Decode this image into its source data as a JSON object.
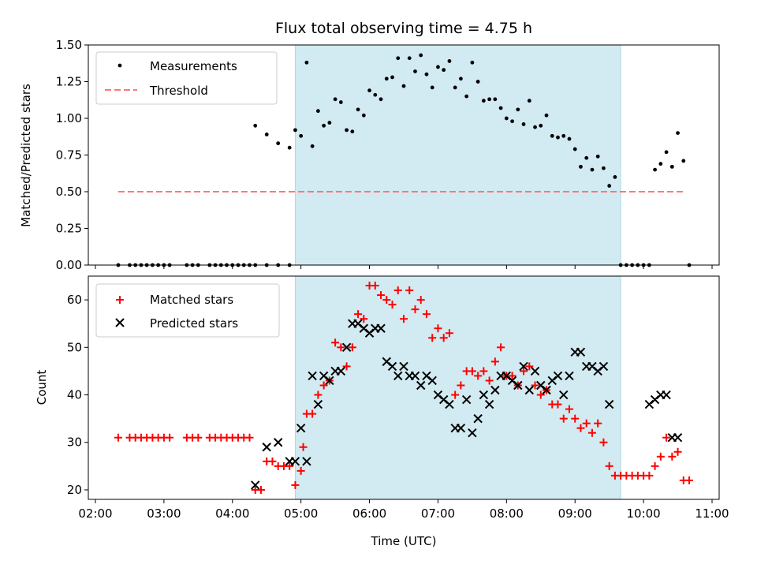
{
  "title": "Flux total observing time = 4.75 h",
  "xlabel": "Time (UTC)",
  "colors": {
    "shade": "#add8e6",
    "measurement": "#000000",
    "threshold": "#ff7777",
    "matched": "#ff0000",
    "predicted": "#000000"
  },
  "chart_data": [
    {
      "type": "scatter",
      "ylabel": "Matched/Predicted stars",
      "ylim": [
        0,
        1.5
      ],
      "yticks": [
        "0.00",
        "0.25",
        "0.50",
        "0.75",
        "1.00",
        "1.25",
        "1.50"
      ],
      "xlim": [
        "02:00",
        "11:00"
      ],
      "observing_window": [
        "04:55",
        "09:40"
      ],
      "legend_position": "top-left",
      "threshold": {
        "name": "Threshold",
        "value": 0.5,
        "x_range": [
          "02:20",
          "10:35"
        ]
      },
      "series": [
        {
          "name": "Measurements",
          "points": [
            [
              "02:20",
              0
            ],
            [
              "02:30",
              0
            ],
            [
              "02:35",
              0
            ],
            [
              "02:40",
              0
            ],
            [
              "02:45",
              0
            ],
            [
              "02:50",
              0
            ],
            [
              "02:55",
              0
            ],
            [
              "03:00",
              0
            ],
            [
              "03:05",
              0
            ],
            [
              "03:20",
              0
            ],
            [
              "03:25",
              0
            ],
            [
              "03:30",
              0
            ],
            [
              "03:40",
              0
            ],
            [
              "03:45",
              0
            ],
            [
              "03:50",
              0
            ],
            [
              "03:55",
              0
            ],
            [
              "04:00",
              0
            ],
            [
              "04:05",
              0
            ],
            [
              "04:10",
              0
            ],
            [
              "04:15",
              0
            ],
            [
              "04:20",
              0
            ],
            [
              "04:30",
              0
            ],
            [
              "04:40",
              0
            ],
            [
              "04:50",
              0
            ],
            [
              "04:20",
              0.95
            ],
            [
              "04:30",
              0.89
            ],
            [
              "04:40",
              0.83
            ],
            [
              "04:50",
              0.8
            ],
            [
              "04:55",
              0.92
            ],
            [
              "05:00",
              0.88
            ],
            [
              "05:05",
              1.38
            ],
            [
              "05:10",
              0.81
            ],
            [
              "05:15",
              1.05
            ],
            [
              "05:20",
              0.95
            ],
            [
              "05:25",
              0.97
            ],
            [
              "05:30",
              1.13
            ],
            [
              "05:35",
              1.11
            ],
            [
              "05:40",
              0.92
            ],
            [
              "05:45",
              0.91
            ],
            [
              "05:50",
              1.06
            ],
            [
              "05:55",
              1.02
            ],
            [
              "06:00",
              1.19
            ],
            [
              "06:05",
              1.16
            ],
            [
              "06:10",
              1.13
            ],
            [
              "06:15",
              1.27
            ],
            [
              "06:20",
              1.28
            ],
            [
              "06:25",
              1.41
            ],
            [
              "06:30",
              1.22
            ],
            [
              "06:35",
              1.41
            ],
            [
              "06:40",
              1.32
            ],
            [
              "06:45",
              1.43
            ],
            [
              "06:50",
              1.3
            ],
            [
              "06:55",
              1.21
            ],
            [
              "07:00",
              1.35
            ],
            [
              "07:05",
              1.33
            ],
            [
              "07:10",
              1.39
            ],
            [
              "07:15",
              1.21
            ],
            [
              "07:20",
              1.27
            ],
            [
              "07:25",
              1.15
            ],
            [
              "07:30",
              1.38
            ],
            [
              "07:35",
              1.25
            ],
            [
              "07:40",
              1.12
            ],
            [
              "07:45",
              1.13
            ],
            [
              "07:50",
              1.13
            ],
            [
              "07:55",
              1.07
            ],
            [
              "08:00",
              1.0
            ],
            [
              "08:05",
              0.98
            ],
            [
              "08:10",
              1.06
            ],
            [
              "08:15",
              0.96
            ],
            [
              "08:20",
              1.12
            ],
            [
              "08:25",
              0.94
            ],
            [
              "08:30",
              0.95
            ],
            [
              "08:35",
              1.02
            ],
            [
              "08:40",
              0.88
            ],
            [
              "08:45",
              0.87
            ],
            [
              "08:50",
              0.88
            ],
            [
              "08:55",
              0.86
            ],
            [
              "09:00",
              0.79
            ],
            [
              "09:05",
              0.67
            ],
            [
              "09:10",
              0.73
            ],
            [
              "09:15",
              0.65
            ],
            [
              "09:20",
              0.74
            ],
            [
              "09:25",
              0.66
            ],
            [
              "09:30",
              0.54
            ],
            [
              "09:35",
              0.6
            ],
            [
              "09:40",
              0
            ],
            [
              "09:45",
              0
            ],
            [
              "09:50",
              0
            ],
            [
              "09:55",
              0
            ],
            [
              "10:00",
              0
            ],
            [
              "10:05",
              0
            ],
            [
              "10:10",
              0.65
            ],
            [
              "10:15",
              0.69
            ],
            [
              "10:20",
              0.77
            ],
            [
              "10:25",
              0.67
            ],
            [
              "10:30",
              0.9
            ],
            [
              "10:35",
              0.71
            ],
            [
              "10:40",
              0
            ]
          ]
        }
      ]
    },
    {
      "type": "scatter",
      "ylabel": "Count",
      "ylim": [
        18,
        65
      ],
      "yticks": [
        "20",
        "30",
        "40",
        "50",
        "60"
      ],
      "xlim": [
        "02:00",
        "11:00"
      ],
      "xticks": [
        "02:00",
        "03:00",
        "04:00",
        "05:00",
        "06:00",
        "07:00",
        "08:00",
        "09:00",
        "10:00",
        "11:00"
      ],
      "observing_window": [
        "04:55",
        "09:40"
      ],
      "legend_position": "top-left",
      "series": [
        {
          "name": "Matched stars",
          "marker": "plus",
          "points": [
            [
              "02:20",
              31
            ],
            [
              "02:30",
              31
            ],
            [
              "02:35",
              31
            ],
            [
              "02:40",
              31
            ],
            [
              "02:45",
              31
            ],
            [
              "02:50",
              31
            ],
            [
              "02:55",
              31
            ],
            [
              "03:00",
              31
            ],
            [
              "03:05",
              31
            ],
            [
              "03:20",
              31
            ],
            [
              "03:25",
              31
            ],
            [
              "03:30",
              31
            ],
            [
              "03:40",
              31
            ],
            [
              "03:45",
              31
            ],
            [
              "03:50",
              31
            ],
            [
              "03:55",
              31
            ],
            [
              "04:00",
              31
            ],
            [
              "04:05",
              31
            ],
            [
              "04:10",
              31
            ],
            [
              "04:15",
              31
            ],
            [
              "04:20",
              20
            ],
            [
              "04:25",
              20
            ],
            [
              "04:30",
              26
            ],
            [
              "04:35",
              26
            ],
            [
              "04:40",
              25
            ],
            [
              "04:45",
              25
            ],
            [
              "04:50",
              25
            ],
            [
              "04:55",
              21
            ],
            [
              "05:00",
              24
            ],
            [
              "05:02",
              29
            ],
            [
              "05:05",
              36
            ],
            [
              "05:10",
              36
            ],
            [
              "05:15",
              40
            ],
            [
              "05:20",
              42
            ],
            [
              "05:25",
              43
            ],
            [
              "05:30",
              51
            ],
            [
              "05:35",
              50
            ],
            [
              "05:40",
              46
            ],
            [
              "05:45",
              50
            ],
            [
              "05:50",
              57
            ],
            [
              "05:55",
              56
            ],
            [
              "06:00",
              63
            ],
            [
              "06:05",
              63
            ],
            [
              "06:10",
              61
            ],
            [
              "06:15",
              60
            ],
            [
              "06:20",
              59
            ],
            [
              "06:25",
              62
            ],
            [
              "06:30",
              56
            ],
            [
              "06:35",
              62
            ],
            [
              "06:40",
              58
            ],
            [
              "06:45",
              60
            ],
            [
              "06:50",
              57
            ],
            [
              "06:55",
              52
            ],
            [
              "07:00",
              54
            ],
            [
              "07:05",
              52
            ],
            [
              "07:10",
              53
            ],
            [
              "07:15",
              40
            ],
            [
              "07:20",
              42
            ],
            [
              "07:25",
              45
            ],
            [
              "07:30",
              45
            ],
            [
              "07:35",
              44
            ],
            [
              "07:40",
              45
            ],
            [
              "07:45",
              43
            ],
            [
              "07:50",
              47
            ],
            [
              "07:55",
              50
            ],
            [
              "08:00",
              44
            ],
            [
              "08:05",
              44
            ],
            [
              "08:10",
              42
            ],
            [
              "08:15",
              45
            ],
            [
              "08:20",
              46
            ],
            [
              "08:25",
              42
            ],
            [
              "08:30",
              40
            ],
            [
              "08:35",
              41
            ],
            [
              "08:40",
              38
            ],
            [
              "08:45",
              38
            ],
            [
              "08:50",
              35
            ],
            [
              "08:55",
              37
            ],
            [
              "09:00",
              35
            ],
            [
              "09:05",
              33
            ],
            [
              "09:10",
              34
            ],
            [
              "09:15",
              32
            ],
            [
              "09:20",
              34
            ],
            [
              "09:25",
              30
            ],
            [
              "09:30",
              25
            ],
            [
              "09:35",
              23
            ],
            [
              "09:40",
              23
            ],
            [
              "09:45",
              23
            ],
            [
              "09:50",
              23
            ],
            [
              "09:55",
              23
            ],
            [
              "10:00",
              23
            ],
            [
              "10:05",
              23
            ],
            [
              "10:10",
              25
            ],
            [
              "10:15",
              27
            ],
            [
              "10:20",
              31
            ],
            [
              "10:25",
              27
            ],
            [
              "10:30",
              28
            ],
            [
              "10:35",
              22
            ],
            [
              "10:40",
              22
            ]
          ]
        },
        {
          "name": "Predicted stars",
          "marker": "x",
          "points": [
            [
              "04:20",
              21
            ],
            [
              "04:30",
              29
            ],
            [
              "04:40",
              30
            ],
            [
              "04:50",
              26
            ],
            [
              "04:55",
              26
            ],
            [
              "05:00",
              33
            ],
            [
              "05:05",
              26
            ],
            [
              "05:10",
              44
            ],
            [
              "05:15",
              38
            ],
            [
              "05:20",
              44
            ],
            [
              "05:25",
              43
            ],
            [
              "05:30",
              45
            ],
            [
              "05:35",
              45
            ],
            [
              "05:40",
              50
            ],
            [
              "05:45",
              55
            ],
            [
              "05:50",
              55
            ],
            [
              "05:55",
              54
            ],
            [
              "06:00",
              53
            ],
            [
              "06:05",
              54
            ],
            [
              "06:10",
              54
            ],
            [
              "06:15",
              47
            ],
            [
              "06:20",
              46
            ],
            [
              "06:25",
              44
            ],
            [
              "06:30",
              46
            ],
            [
              "06:35",
              44
            ],
            [
              "06:40",
              44
            ],
            [
              "06:45",
              42
            ],
            [
              "06:50",
              44
            ],
            [
              "06:55",
              43
            ],
            [
              "07:00",
              40
            ],
            [
              "07:05",
              39
            ],
            [
              "07:10",
              38
            ],
            [
              "07:15",
              33
            ],
            [
              "07:20",
              33
            ],
            [
              "07:25",
              39
            ],
            [
              "07:30",
              32
            ],
            [
              "07:35",
              35
            ],
            [
              "07:40",
              40
            ],
            [
              "07:45",
              38
            ],
            [
              "07:50",
              41
            ],
            [
              "07:55",
              44
            ],
            [
              "08:00",
              44
            ],
            [
              "08:05",
              43
            ],
            [
              "08:10",
              42
            ],
            [
              "08:15",
              46
            ],
            [
              "08:20",
              41
            ],
            [
              "08:25",
              45
            ],
            [
              "08:30",
              42
            ],
            [
              "08:35",
              41
            ],
            [
              "08:40",
              43
            ],
            [
              "08:45",
              44
            ],
            [
              "08:50",
              40
            ],
            [
              "08:55",
              44
            ],
            [
              "09:00",
              49
            ],
            [
              "09:05",
              49
            ],
            [
              "09:10",
              46
            ],
            [
              "09:15",
              46
            ],
            [
              "09:20",
              45
            ],
            [
              "09:25",
              46
            ],
            [
              "09:30",
              38
            ],
            [
              "10:05",
              38
            ],
            [
              "10:10",
              39
            ],
            [
              "10:15",
              40
            ],
            [
              "10:20",
              40
            ],
            [
              "10:25",
              31
            ],
            [
              "10:30",
              31
            ]
          ]
        }
      ]
    }
  ]
}
